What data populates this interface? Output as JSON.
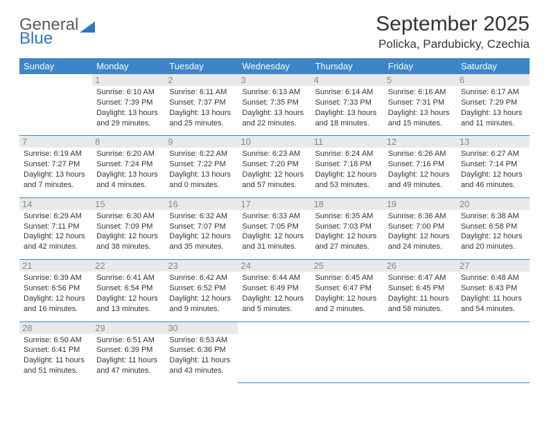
{
  "brand": {
    "name_top": "General",
    "name_bottom": "Blue"
  },
  "header": {
    "title": "September 2025",
    "location": "Policka, Pardubicky, Czechia"
  },
  "colors": {
    "header_bg": "#3d85c6",
    "header_text": "#ffffff",
    "daynum_bg": "#e9e9e9",
    "daynum_text": "#888888",
    "row_border": "#3d85c6",
    "logo_blue": "#2f77bb",
    "text": "#333333"
  },
  "weekdays": [
    "Sunday",
    "Monday",
    "Tuesday",
    "Wednesday",
    "Thursday",
    "Friday",
    "Saturday"
  ],
  "grid": [
    [
      null,
      {
        "n": "1",
        "sr": "6:10 AM",
        "ss": "7:39 PM",
        "dl": "13 hours and 29 minutes."
      },
      {
        "n": "2",
        "sr": "6:11 AM",
        "ss": "7:37 PM",
        "dl": "13 hours and 25 minutes."
      },
      {
        "n": "3",
        "sr": "6:13 AM",
        "ss": "7:35 PM",
        "dl": "13 hours and 22 minutes."
      },
      {
        "n": "4",
        "sr": "6:14 AM",
        "ss": "7:33 PM",
        "dl": "13 hours and 18 minutes."
      },
      {
        "n": "5",
        "sr": "6:16 AM",
        "ss": "7:31 PM",
        "dl": "13 hours and 15 minutes."
      },
      {
        "n": "6",
        "sr": "6:17 AM",
        "ss": "7:29 PM",
        "dl": "13 hours and 11 minutes."
      }
    ],
    [
      {
        "n": "7",
        "sr": "6:19 AM",
        "ss": "7:27 PM",
        "dl": "13 hours and 7 minutes."
      },
      {
        "n": "8",
        "sr": "6:20 AM",
        "ss": "7:24 PM",
        "dl": "13 hours and 4 minutes."
      },
      {
        "n": "9",
        "sr": "6:22 AM",
        "ss": "7:22 PM",
        "dl": "13 hours and 0 minutes."
      },
      {
        "n": "10",
        "sr": "6:23 AM",
        "ss": "7:20 PM",
        "dl": "12 hours and 57 minutes."
      },
      {
        "n": "11",
        "sr": "6:24 AM",
        "ss": "7:18 PM",
        "dl": "12 hours and 53 minutes."
      },
      {
        "n": "12",
        "sr": "6:26 AM",
        "ss": "7:16 PM",
        "dl": "12 hours and 49 minutes."
      },
      {
        "n": "13",
        "sr": "6:27 AM",
        "ss": "7:14 PM",
        "dl": "12 hours and 46 minutes."
      }
    ],
    [
      {
        "n": "14",
        "sr": "6:29 AM",
        "ss": "7:11 PM",
        "dl": "12 hours and 42 minutes."
      },
      {
        "n": "15",
        "sr": "6:30 AM",
        "ss": "7:09 PM",
        "dl": "12 hours and 38 minutes."
      },
      {
        "n": "16",
        "sr": "6:32 AM",
        "ss": "7:07 PM",
        "dl": "12 hours and 35 minutes."
      },
      {
        "n": "17",
        "sr": "6:33 AM",
        "ss": "7:05 PM",
        "dl": "12 hours and 31 minutes."
      },
      {
        "n": "18",
        "sr": "6:35 AM",
        "ss": "7:03 PM",
        "dl": "12 hours and 27 minutes."
      },
      {
        "n": "19",
        "sr": "6:36 AM",
        "ss": "7:00 PM",
        "dl": "12 hours and 24 minutes."
      },
      {
        "n": "20",
        "sr": "6:38 AM",
        "ss": "6:58 PM",
        "dl": "12 hours and 20 minutes."
      }
    ],
    [
      {
        "n": "21",
        "sr": "6:39 AM",
        "ss": "6:56 PM",
        "dl": "12 hours and 16 minutes."
      },
      {
        "n": "22",
        "sr": "6:41 AM",
        "ss": "6:54 PM",
        "dl": "12 hours and 13 minutes."
      },
      {
        "n": "23",
        "sr": "6:42 AM",
        "ss": "6:52 PM",
        "dl": "12 hours and 9 minutes."
      },
      {
        "n": "24",
        "sr": "6:44 AM",
        "ss": "6:49 PM",
        "dl": "12 hours and 5 minutes."
      },
      {
        "n": "25",
        "sr": "6:45 AM",
        "ss": "6:47 PM",
        "dl": "12 hours and 2 minutes."
      },
      {
        "n": "26",
        "sr": "6:47 AM",
        "ss": "6:45 PM",
        "dl": "11 hours and 58 minutes."
      },
      {
        "n": "27",
        "sr": "6:48 AM",
        "ss": "6:43 PM",
        "dl": "11 hours and 54 minutes."
      }
    ],
    [
      {
        "n": "28",
        "sr": "6:50 AM",
        "ss": "6:41 PM",
        "dl": "11 hours and 51 minutes."
      },
      {
        "n": "29",
        "sr": "6:51 AM",
        "ss": "6:39 PM",
        "dl": "11 hours and 47 minutes."
      },
      {
        "n": "30",
        "sr": "6:53 AM",
        "ss": "6:36 PM",
        "dl": "11 hours and 43 minutes."
      },
      null,
      null,
      null,
      null
    ]
  ],
  "labels": {
    "sunrise": "Sunrise:",
    "sunset": "Sunset:",
    "daylight": "Daylight:"
  }
}
